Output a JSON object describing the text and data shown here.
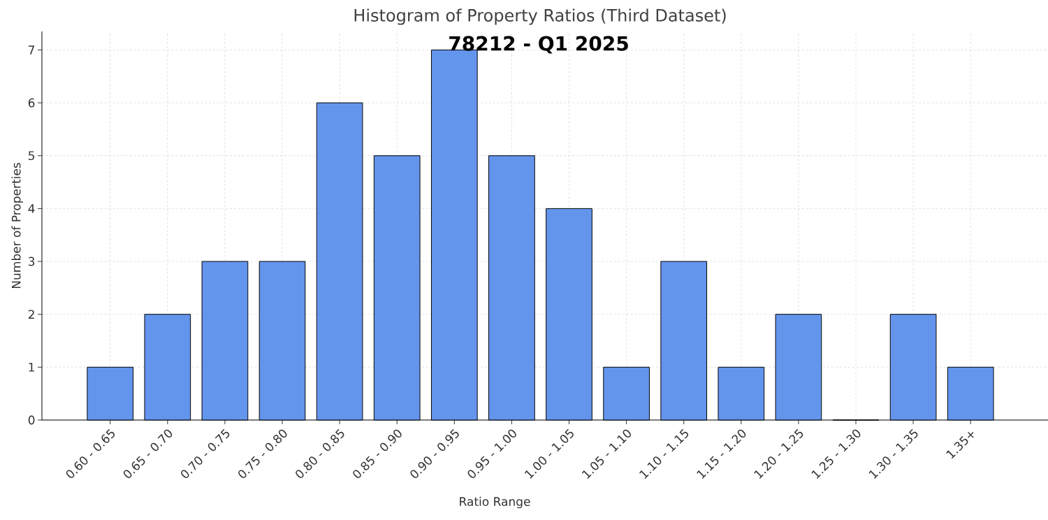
{
  "chart_data": {
    "type": "bar",
    "title": "Histogram of Property Ratios (Third Dataset)",
    "subtitle": "78212 - Q1 2025",
    "xlabel": "Ratio Range",
    "ylabel": "Number of Properties",
    "categories": [
      "0.60 - 0.65",
      "0.65 - 0.70",
      "0.70 - 0.75",
      "0.75 - 0.80",
      "0.80 - 0.85",
      "0.85 - 0.90",
      "0.90 - 0.95",
      "0.95 - 1.00",
      "1.00 - 1.05",
      "1.05 - 1.10",
      "1.10 - 1.15",
      "1.15 - 1.20",
      "1.20 - 1.25",
      "1.25 - 1.30",
      "1.30 - 1.35",
      "1.35+"
    ],
    "values": [
      1,
      2,
      3,
      3,
      6,
      5,
      7,
      5,
      4,
      1,
      3,
      1,
      2,
      0,
      2,
      1
    ],
    "color": "#6495ed",
    "ylim": [
      0,
      7.35
    ],
    "yticks": [
      0,
      1,
      2,
      3,
      4,
      5,
      6,
      7
    ],
    "grid": true
  }
}
